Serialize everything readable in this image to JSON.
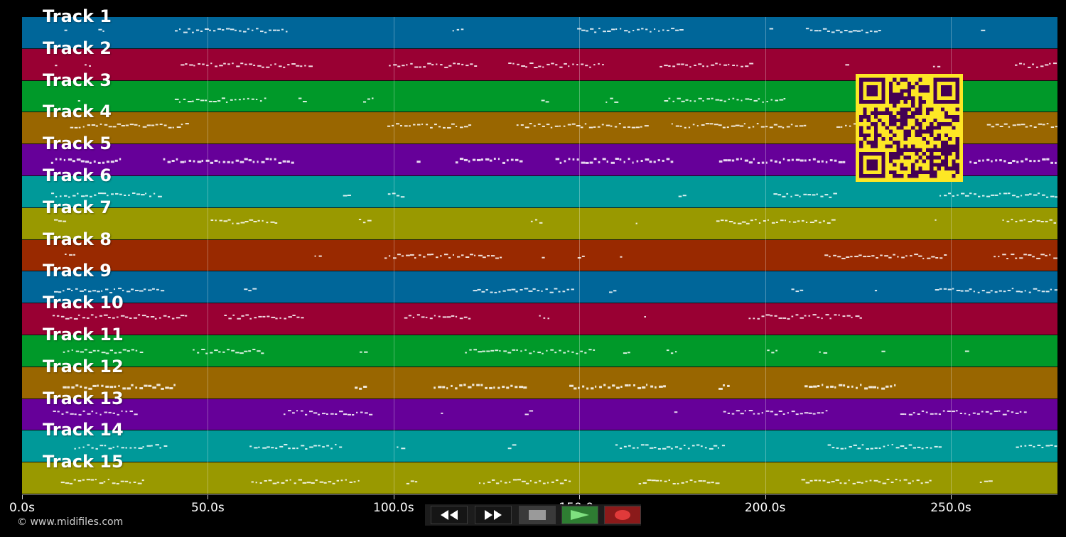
{
  "tracks": [
    {
      "label": "Track 1",
      "color": "#006699"
    },
    {
      "label": "Track 2",
      "color": "#990033"
    },
    {
      "label": "Track 3",
      "color": "#009929"
    },
    {
      "label": "Track 4",
      "color": "#996600"
    },
    {
      "label": "Track 5",
      "color": "#660099"
    },
    {
      "label": "Track 6",
      "color": "#009999"
    },
    {
      "label": "Track 7",
      "color": "#999900"
    },
    {
      "label": "Track 8",
      "color": "#992900"
    },
    {
      "label": "Track 9",
      "color": "#006699"
    },
    {
      "label": "Track 10",
      "color": "#990033"
    },
    {
      "label": "Track 11",
      "color": "#009929"
    },
    {
      "label": "Track 12",
      "color": "#996600"
    },
    {
      "label": "Track 13",
      "color": "#660099"
    },
    {
      "label": "Track 14",
      "color": "#009999"
    },
    {
      "label": "Track 15",
      "color": "#999900"
    }
  ],
  "timeline": {
    "ticks": [
      "0.0s",
      "50.0s",
      "100.0s",
      "150.0s",
      "200.0s",
      "250.0s"
    ]
  },
  "transport": {
    "buttons": [
      "rewind-icon",
      "fast-forward-icon",
      "stop-icon",
      "play-icon",
      "record-icon"
    ],
    "colors": {
      "play": "#2e7d32",
      "record": "#8b1a1a",
      "stop": "#3a3a3a"
    }
  },
  "footer": {
    "copyright": "© www.midifiles.com"
  },
  "qr_code": {
    "icon": "qr-code-icon",
    "colors": {
      "fg": "#440154",
      "bg": "#fde725"
    }
  }
}
